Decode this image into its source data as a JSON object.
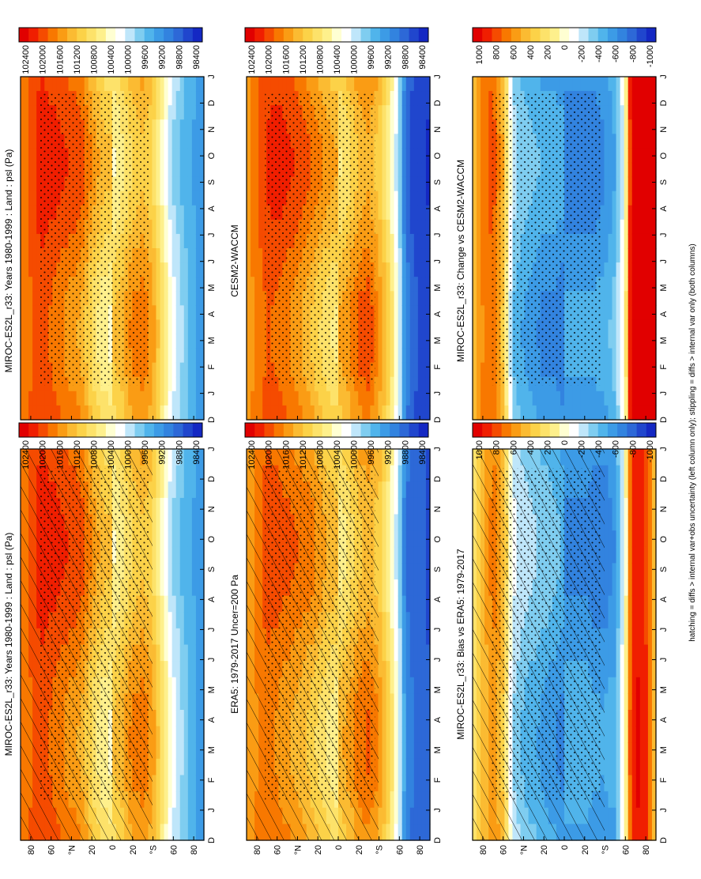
{
  "figure": {
    "footnote": "hatching = diffs > internal var+obs uncertainty (left column only); stippling = diffs > internal var only (both columns)"
  },
  "palettes": {
    "abs": [
      "#e10000",
      "#f01e00",
      "#f54b00",
      "#f87800",
      "#fa9c14",
      "#fbbb32",
      "#fcd248",
      "#fde26a",
      "#fef08c",
      "#ffffd2",
      "#ffffff",
      "#bfe6fa",
      "#7fcdf0",
      "#50b4eb",
      "#3c9be6",
      "#3283df",
      "#2d68d7",
      "#2046cd",
      "#1428c3"
    ],
    "anom": [
      "#e10000",
      "#f01e00",
      "#f54b00",
      "#f87800",
      "#fa9c14",
      "#fbbb32",
      "#fcd248",
      "#fde26a",
      "#fef08c",
      "#ffffd2",
      "#ffffff",
      "#bfe6fa",
      "#7fcdf0",
      "#50b4eb",
      "#3c9be6",
      "#3283df",
      "#2d68d7",
      "#2046cd",
      "#1428c3"
    ]
  },
  "colorbars": {
    "abs_labels": [
      "102400",
      "102000",
      "101600",
      "101200",
      "100800",
      "100400",
      "100000",
      "99600",
      "99200",
      "98800",
      "98400"
    ],
    "anom_labels": [
      "1000",
      "800",
      "600",
      "400",
      "200",
      "0",
      "-200",
      "-400",
      "-600",
      "-800",
      "-1000"
    ]
  },
  "axes": {
    "month_ticks": [
      "D",
      "J",
      "F",
      "M",
      "A",
      "M",
      "J",
      "J",
      "A",
      "S",
      "O",
      "N",
      "D",
      "J"
    ],
    "lat_ticks": [
      "80",
      "60",
      "°N",
      "20",
      "0",
      "20",
      "°S",
      "60",
      "80"
    ]
  },
  "chart_data": [
    {
      "type": "heatmap",
      "title": "MIROC-ES2L_r33: Years 1980-1999 : Land : psl (Pa)",
      "variable": "psl (Pa)",
      "overlay": "hatching and stippling",
      "x_categories": [
        "J",
        "F",
        "M",
        "A",
        "M",
        "J",
        "J",
        "A",
        "S",
        "O",
        "N",
        "D"
      ],
      "y_range": [
        -90,
        90
      ],
      "color_range": [
        98400,
        102400
      ],
      "profile": {
        "lat": [
          -90,
          -80,
          -70,
          -65,
          -60,
          -50,
          -40,
          -30,
          -20,
          -10,
          0,
          10,
          20,
          30,
          40,
          50,
          60,
          70,
          80,
          90
        ],
        "value": [
          99200,
          99500,
          99700,
          99900,
          100000,
          100600,
          101200,
          101400,
          101300,
          101000,
          100800,
          100900,
          101200,
          101600,
          101700,
          101800,
          101900,
          102000,
          101800,
          101600
        ]
      }
    },
    {
      "type": "heatmap",
      "title": "MIROC-ES2L_r33: Years 1980-1999 : Land : psl (Pa)",
      "variable": "psl (Pa)",
      "overlay": "stippling",
      "x_categories": [
        "J",
        "F",
        "M",
        "A",
        "M",
        "J",
        "J",
        "A",
        "S",
        "O",
        "N",
        "D"
      ],
      "y_range": [
        -90,
        90
      ],
      "color_range": [
        98400,
        102400
      ],
      "profile": {
        "lat": [
          -90,
          -80,
          -70,
          -65,
          -60,
          -50,
          -40,
          -30,
          -20,
          -10,
          0,
          10,
          20,
          30,
          40,
          50,
          60,
          70,
          80,
          90
        ],
        "value": [
          99200,
          99500,
          99700,
          99900,
          100000,
          100600,
          101200,
          101400,
          101300,
          101000,
          100800,
          100900,
          101200,
          101600,
          101700,
          101800,
          101900,
          102000,
          101800,
          101600
        ]
      }
    },
    {
      "type": "heatmap",
      "title": "ERA5: 1979-2017 Uncer=200 Pa",
      "overlay": "hatching and stippling",
      "x_categories": [
        "J",
        "F",
        "M",
        "A",
        "M",
        "J",
        "J",
        "A",
        "S",
        "O",
        "N",
        "D"
      ],
      "y_range": [
        -90,
        90
      ],
      "color_range": [
        98400,
        102400
      ],
      "profile": {
        "lat": [
          -90,
          -80,
          -70,
          -65,
          -60,
          -50,
          -40,
          -30,
          -20,
          -10,
          0,
          10,
          20,
          30,
          40,
          50,
          60,
          70,
          80,
          90
        ],
        "value": [
          98800,
          98900,
          99000,
          99300,
          100000,
          100800,
          101300,
          101500,
          101400,
          101100,
          100900,
          101000,
          101200,
          101400,
          101500,
          101600,
          101700,
          101800,
          101600,
          101400
        ]
      }
    },
    {
      "type": "heatmap",
      "title": "CESM2-WACCM",
      "overlay": "stippling",
      "x_categories": [
        "J",
        "F",
        "M",
        "A",
        "M",
        "J",
        "J",
        "A",
        "S",
        "O",
        "N",
        "D"
      ],
      "y_range": [
        -90,
        90
      ],
      "color_range": [
        98400,
        102400
      ],
      "profile": {
        "lat": [
          -90,
          -80,
          -70,
          -65,
          -60,
          -50,
          -40,
          -30,
          -20,
          -10,
          0,
          10,
          20,
          30,
          40,
          50,
          60,
          70,
          80,
          90
        ],
        "value": [
          98600,
          98700,
          98900,
          99200,
          100000,
          100800,
          101300,
          101600,
          101500,
          101200,
          101000,
          101100,
          101300,
          101500,
          101700,
          101800,
          101900,
          101900,
          101700,
          101400
        ]
      }
    },
    {
      "type": "heatmap",
      "title": "MIROC-ES2L_r33: Bias vs ERA5: 1979-2017",
      "overlay": "hatching and stippling",
      "x_categories": [
        "J",
        "F",
        "M",
        "A",
        "M",
        "J",
        "J",
        "A",
        "S",
        "O",
        "N",
        "D"
      ],
      "y_range": [
        -90,
        90
      ],
      "color_range": [
        -1000,
        1000
      ],
      "profile": {
        "lat": [
          -90,
          -80,
          -70,
          -65,
          -60,
          -50,
          -40,
          -30,
          -20,
          -10,
          0,
          10,
          20,
          30,
          40,
          50,
          60,
          70,
          80,
          90
        ],
        "value": [
          300,
          800,
          900,
          700,
          0,
          -500,
          -550,
          -550,
          -500,
          -500,
          -500,
          -450,
          -400,
          -350,
          -300,
          -200,
          400,
          600,
          400,
          200
        ]
      }
    },
    {
      "type": "heatmap",
      "title": "MIROC-ES2L_r33: Change vs CESM2-WACCM",
      "overlay": "stippling",
      "x_categories": [
        "J",
        "F",
        "M",
        "A",
        "M",
        "J",
        "J",
        "A",
        "S",
        "O",
        "N",
        "D"
      ],
      "y_range": [
        -90,
        90
      ],
      "color_range": [
        -1000,
        1000
      ],
      "profile": {
        "lat": [
          -90,
          -80,
          -70,
          -65,
          -60,
          -50,
          -40,
          -30,
          -20,
          -10,
          0,
          10,
          20,
          30,
          40,
          50,
          60,
          70,
          80,
          90
        ],
        "value": [
          900,
          1000,
          1000,
          900,
          0,
          -400,
          -500,
          -550,
          -550,
          -550,
          -550,
          -500,
          -500,
          -450,
          -400,
          -300,
          400,
          700,
          600,
          400
        ]
      }
    }
  ]
}
